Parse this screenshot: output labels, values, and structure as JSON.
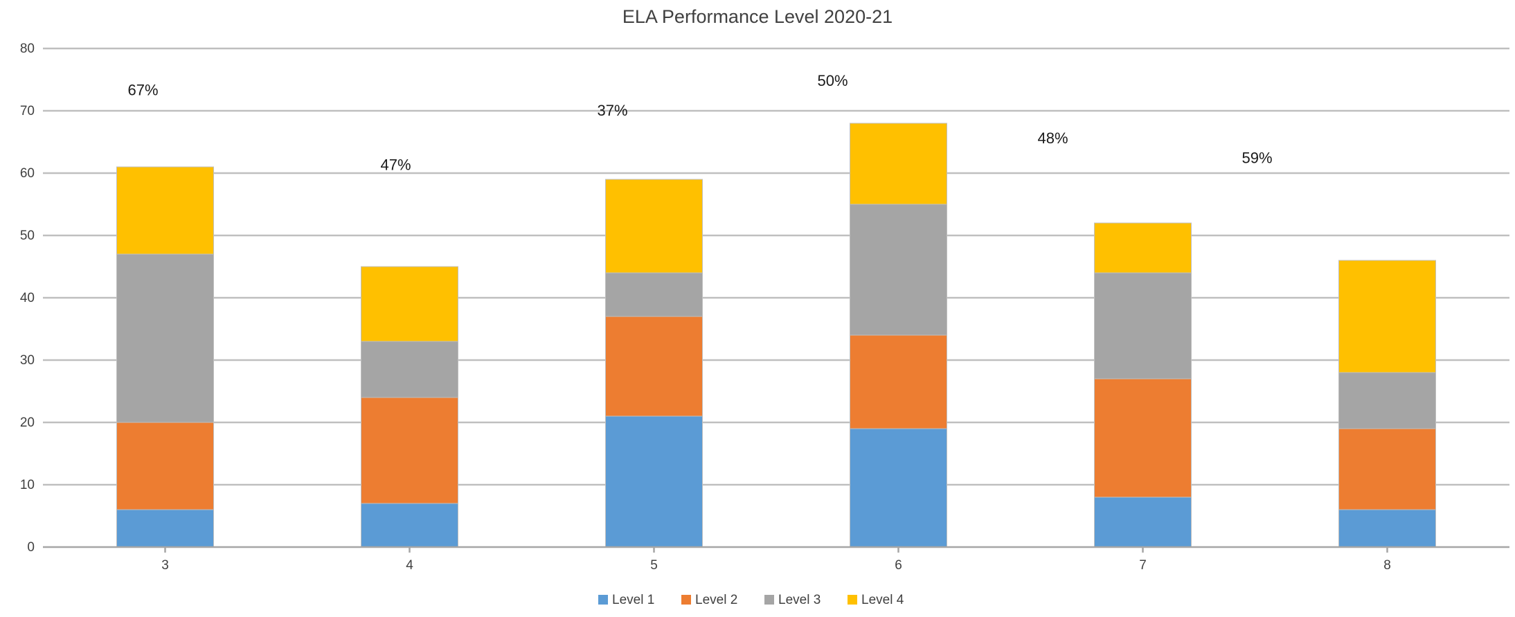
{
  "chart_data": {
    "type": "bar",
    "stacked": true,
    "title": "ELA Performance Level 2020-21",
    "xlabel": "",
    "ylabel": "",
    "categories": [
      "3",
      "4",
      "5",
      "6",
      "7",
      "8"
    ],
    "ylim": [
      0,
      80
    ],
    "yticks": [
      "0",
      "10",
      "20",
      "30",
      "40",
      "50",
      "60",
      "70",
      "80"
    ],
    "grid": true,
    "legend_position": "bottom",
    "series": [
      {
        "name": "Level 1",
        "color": "#5b9bd5",
        "values": [
          6,
          7,
          21,
          19,
          8,
          6
        ]
      },
      {
        "name": "Level 2",
        "color": "#ed7d31",
        "values": [
          14,
          17,
          16,
          15,
          19,
          13
        ]
      },
      {
        "name": "Level 3",
        "color": "#a5a5a5",
        "values": [
          27,
          9,
          7,
          21,
          17,
          9
        ]
      },
      {
        "name": "Level 4",
        "color": "#ffc000",
        "values": [
          14,
          12,
          15,
          13,
          8,
          18
        ]
      }
    ],
    "annotations": [
      {
        "category": "3",
        "text": "67%",
        "y": 72.5
      },
      {
        "category": "4",
        "text": "47%",
        "y": 60.5
      },
      {
        "category": "5",
        "text": "37%",
        "y": 69.2
      },
      {
        "category": "6",
        "text": "50%",
        "y": 74.0
      },
      {
        "category": "7",
        "text": "48%",
        "y": 64.8
      },
      {
        "category": "8",
        "text": "59%",
        "y": 61.6
      }
    ]
  }
}
